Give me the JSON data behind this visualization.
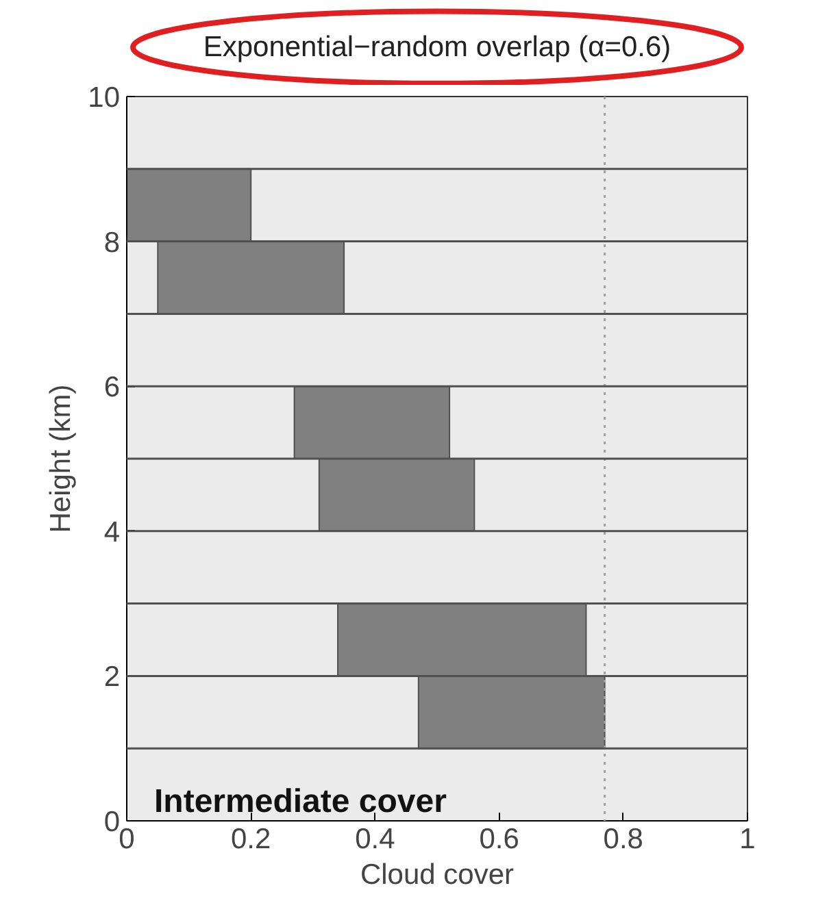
{
  "chart_data": {
    "type": "bar",
    "orientation": "horizontal",
    "title": "Exponential−random overlap (α=0.6)",
    "xlabel": "Cloud cover",
    "ylabel": "Height (km)",
    "x": [
      1.5,
      2.5,
      4.5,
      5.5,
      7.5,
      8.5
    ],
    "base": [
      0.47,
      0.34,
      0.31,
      0.27,
      0.05,
      0
    ],
    "values": [
      0.3,
      0.4,
      0.25,
      0.25,
      0.3,
      0.2
    ],
    "color": "#808080",
    "xlim": [
      0,
      1
    ],
    "xticks": [
      0,
      0.2,
      0.4,
      0.6,
      0.8,
      1
    ],
    "ylim": [
      0,
      10
    ],
    "yticks": [
      0,
      2,
      4,
      6,
      8,
      10
    ],
    "ref_lines": [
      {
        "axis": "x",
        "value": 0.77,
        "color": "#a0a0a0",
        "line_style": "dotted"
      },
      {
        "axis": "y",
        "value": 1,
        "color": "#505050"
      },
      {
        "axis": "y",
        "value": 2,
        "color": "#505050"
      },
      {
        "axis": "y",
        "value": 3,
        "color": "#505050"
      },
      {
        "axis": "y",
        "value": 4,
        "color": "#505050"
      },
      {
        "axis": "y",
        "value": 5,
        "color": "#505050"
      },
      {
        "axis": "y",
        "value": 6,
        "color": "#505050"
      },
      {
        "axis": "y",
        "value": 7,
        "color": "#505050"
      },
      {
        "axis": "y",
        "value": 8,
        "color": "#505050"
      },
      {
        "axis": "y",
        "value": 9,
        "color": "#505050"
      }
    ],
    "annotations": [
      "Intermediate cover"
    ]
  }
}
